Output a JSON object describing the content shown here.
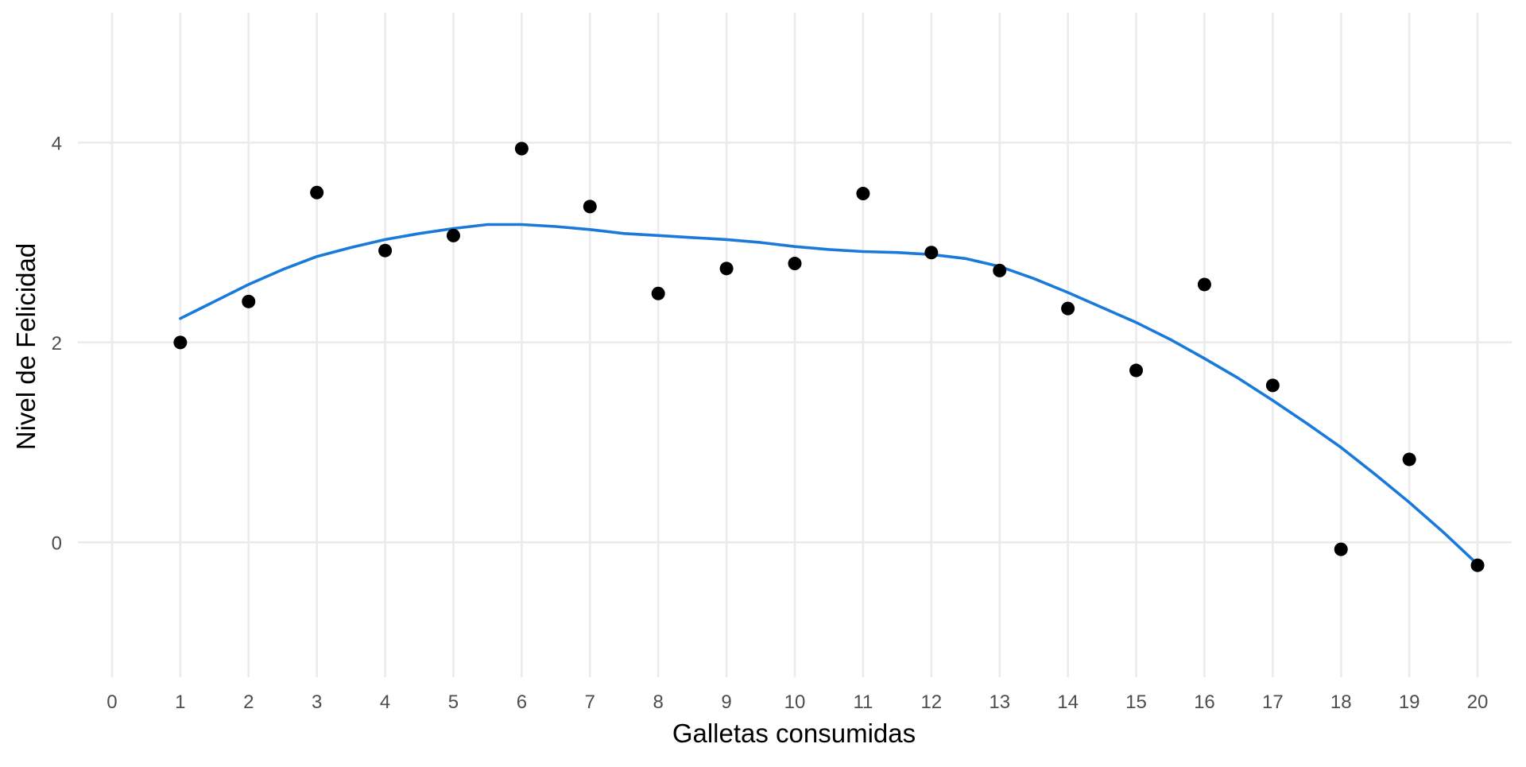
{
  "chart_data": {
    "type": "scatter",
    "title": "",
    "xlabel": "Galletas consumidas",
    "ylabel": "Nivel de Felicidad",
    "xlim": [
      -0.5,
      20.5
    ],
    "ylim": [
      -1.35,
      5.3
    ],
    "x_ticks": [
      0,
      1,
      2,
      3,
      4,
      5,
      6,
      7,
      8,
      9,
      10,
      11,
      12,
      13,
      14,
      15,
      16,
      17,
      18,
      19,
      20
    ],
    "y_ticks": [
      0,
      2,
      4
    ],
    "grid": true,
    "legend": "none",
    "series": [
      {
        "type": "scatter",
        "color": "#000000",
        "x": [
          1,
          2,
          3,
          4,
          5,
          6,
          7,
          8,
          9,
          10,
          11,
          12,
          13,
          14,
          15,
          16,
          17,
          18,
          19,
          20
        ],
        "y": [
          2.0,
          2.41,
          3.5,
          2.92,
          3.07,
          3.94,
          3.36,
          2.49,
          2.74,
          2.79,
          3.49,
          2.9,
          2.72,
          2.34,
          1.72,
          2.58,
          1.57,
          -0.07,
          0.83,
          -0.23
        ]
      },
      {
        "type": "line",
        "color": "#1a7ad9",
        "x": [
          1,
          1.5,
          2,
          2.5,
          3,
          3.5,
          4,
          4.5,
          5,
          5.5,
          6,
          6.5,
          7,
          7.5,
          8,
          8.5,
          9,
          9.5,
          10,
          10.5,
          11,
          11.5,
          12,
          12.5,
          13,
          13.5,
          14,
          14.5,
          15,
          15.5,
          16,
          16.5,
          17,
          17.5,
          18,
          18.5,
          19,
          19.5,
          20
        ],
        "y": [
          2.24,
          2.41,
          2.58,
          2.73,
          2.86,
          2.95,
          3.03,
          3.09,
          3.14,
          3.18,
          3.18,
          3.16,
          3.13,
          3.09,
          3.07,
          3.05,
          3.03,
          3.0,
          2.96,
          2.93,
          2.91,
          2.9,
          2.88,
          2.84,
          2.76,
          2.64,
          2.5,
          2.35,
          2.2,
          2.03,
          1.84,
          1.64,
          1.42,
          1.19,
          0.95,
          0.68,
          0.4,
          0.1,
          -0.22
        ]
      }
    ]
  }
}
